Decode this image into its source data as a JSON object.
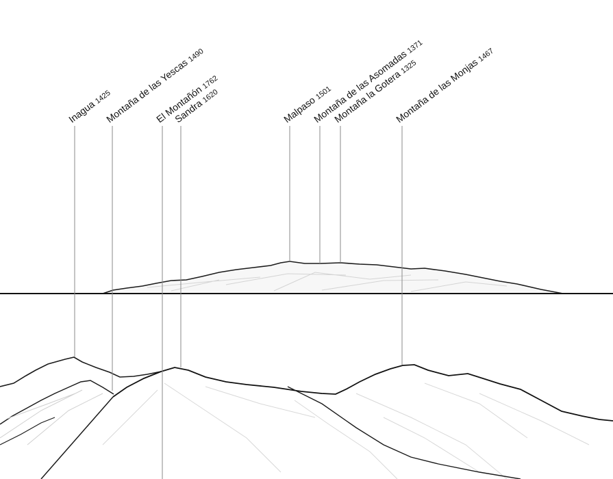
{
  "panorama": {
    "peaks": [
      {
        "name": "Inagua",
        "elevation": "1425"
      },
      {
        "name": "Montaña de las Yescas",
        "elevation": "1490"
      },
      {
        "name": "El Montañón",
        "elevation": "1762"
      },
      {
        "name": "Sandra",
        "elevation": "1620"
      },
      {
        "name": "Malpaso",
        "elevation": "1501"
      },
      {
        "name": "Montaña de las Asomadas",
        "elevation": "1371"
      },
      {
        "name": "Montaña la Gotera",
        "elevation": "1325"
      },
      {
        "name": "Montaña de las Monjas",
        "elevation": "1467"
      }
    ]
  }
}
